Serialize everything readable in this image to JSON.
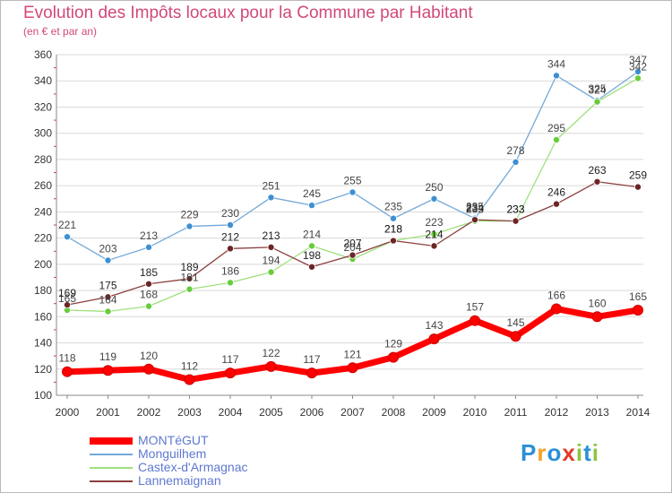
{
  "chart_data": {
    "type": "line",
    "title": "Evolution des Impôts locaux pour la Commune par Habitant",
    "subtitle": "(en € et par an)",
    "x": [
      "2000",
      "2001",
      "2002",
      "2003",
      "2004",
      "2005",
      "2006",
      "2007",
      "2008",
      "2009",
      "2010",
      "2011",
      "2012",
      "2013",
      "2014"
    ],
    "ylim": [
      100,
      360
    ],
    "yticks": [
      100,
      120,
      140,
      160,
      180,
      200,
      220,
      240,
      260,
      280,
      300,
      320,
      340,
      360
    ],
    "grid": "horizontal",
    "legend_position": "bottom-left",
    "series": [
      {
        "name": "MONTéGUT",
        "color": "#ff0000",
        "marker": "#ff0000",
        "label_color": "#444444",
        "values": [
          118,
          119,
          120,
          112,
          117,
          122,
          117,
          121,
          129,
          143,
          157,
          145,
          166,
          160,
          165
        ]
      },
      {
        "name": "Monguilhem",
        "color": "#73a9d8",
        "marker": "#3f8fd2",
        "label_color": "#444444",
        "values": [
          221,
          203,
          213,
          229,
          230,
          251,
          245,
          255,
          235,
          250,
          235,
          278,
          344,
          325,
          347
        ]
      },
      {
        "name": "Castex-d'Armagnac",
        "color": "#9ee07d",
        "marker": "#68cc3c",
        "label_color": "#444444",
        "values": [
          165,
          164,
          168,
          181,
          186,
          194,
          214,
          204,
          218,
          223,
          233,
          233,
          295,
          324,
          342
        ]
      },
      {
        "name": "Lannemaignan",
        "color": "#8c3f3f",
        "marker": "#6b2525",
        "label_color": "#222222",
        "values": [
          169,
          175,
          185,
          189,
          212,
          213,
          198,
          207,
          218,
          214,
          234,
          233,
          246,
          263,
          259
        ]
      }
    ]
  },
  "brand": {
    "letters": [
      "P",
      "r",
      "o",
      "x",
      "i",
      "t",
      "i"
    ],
    "colors": [
      "#2b8fd6",
      "#f4a324",
      "#2b8fd6",
      "#e23b2b",
      "#8cc63f",
      "#2b8fd6",
      "#8cc63f"
    ]
  }
}
